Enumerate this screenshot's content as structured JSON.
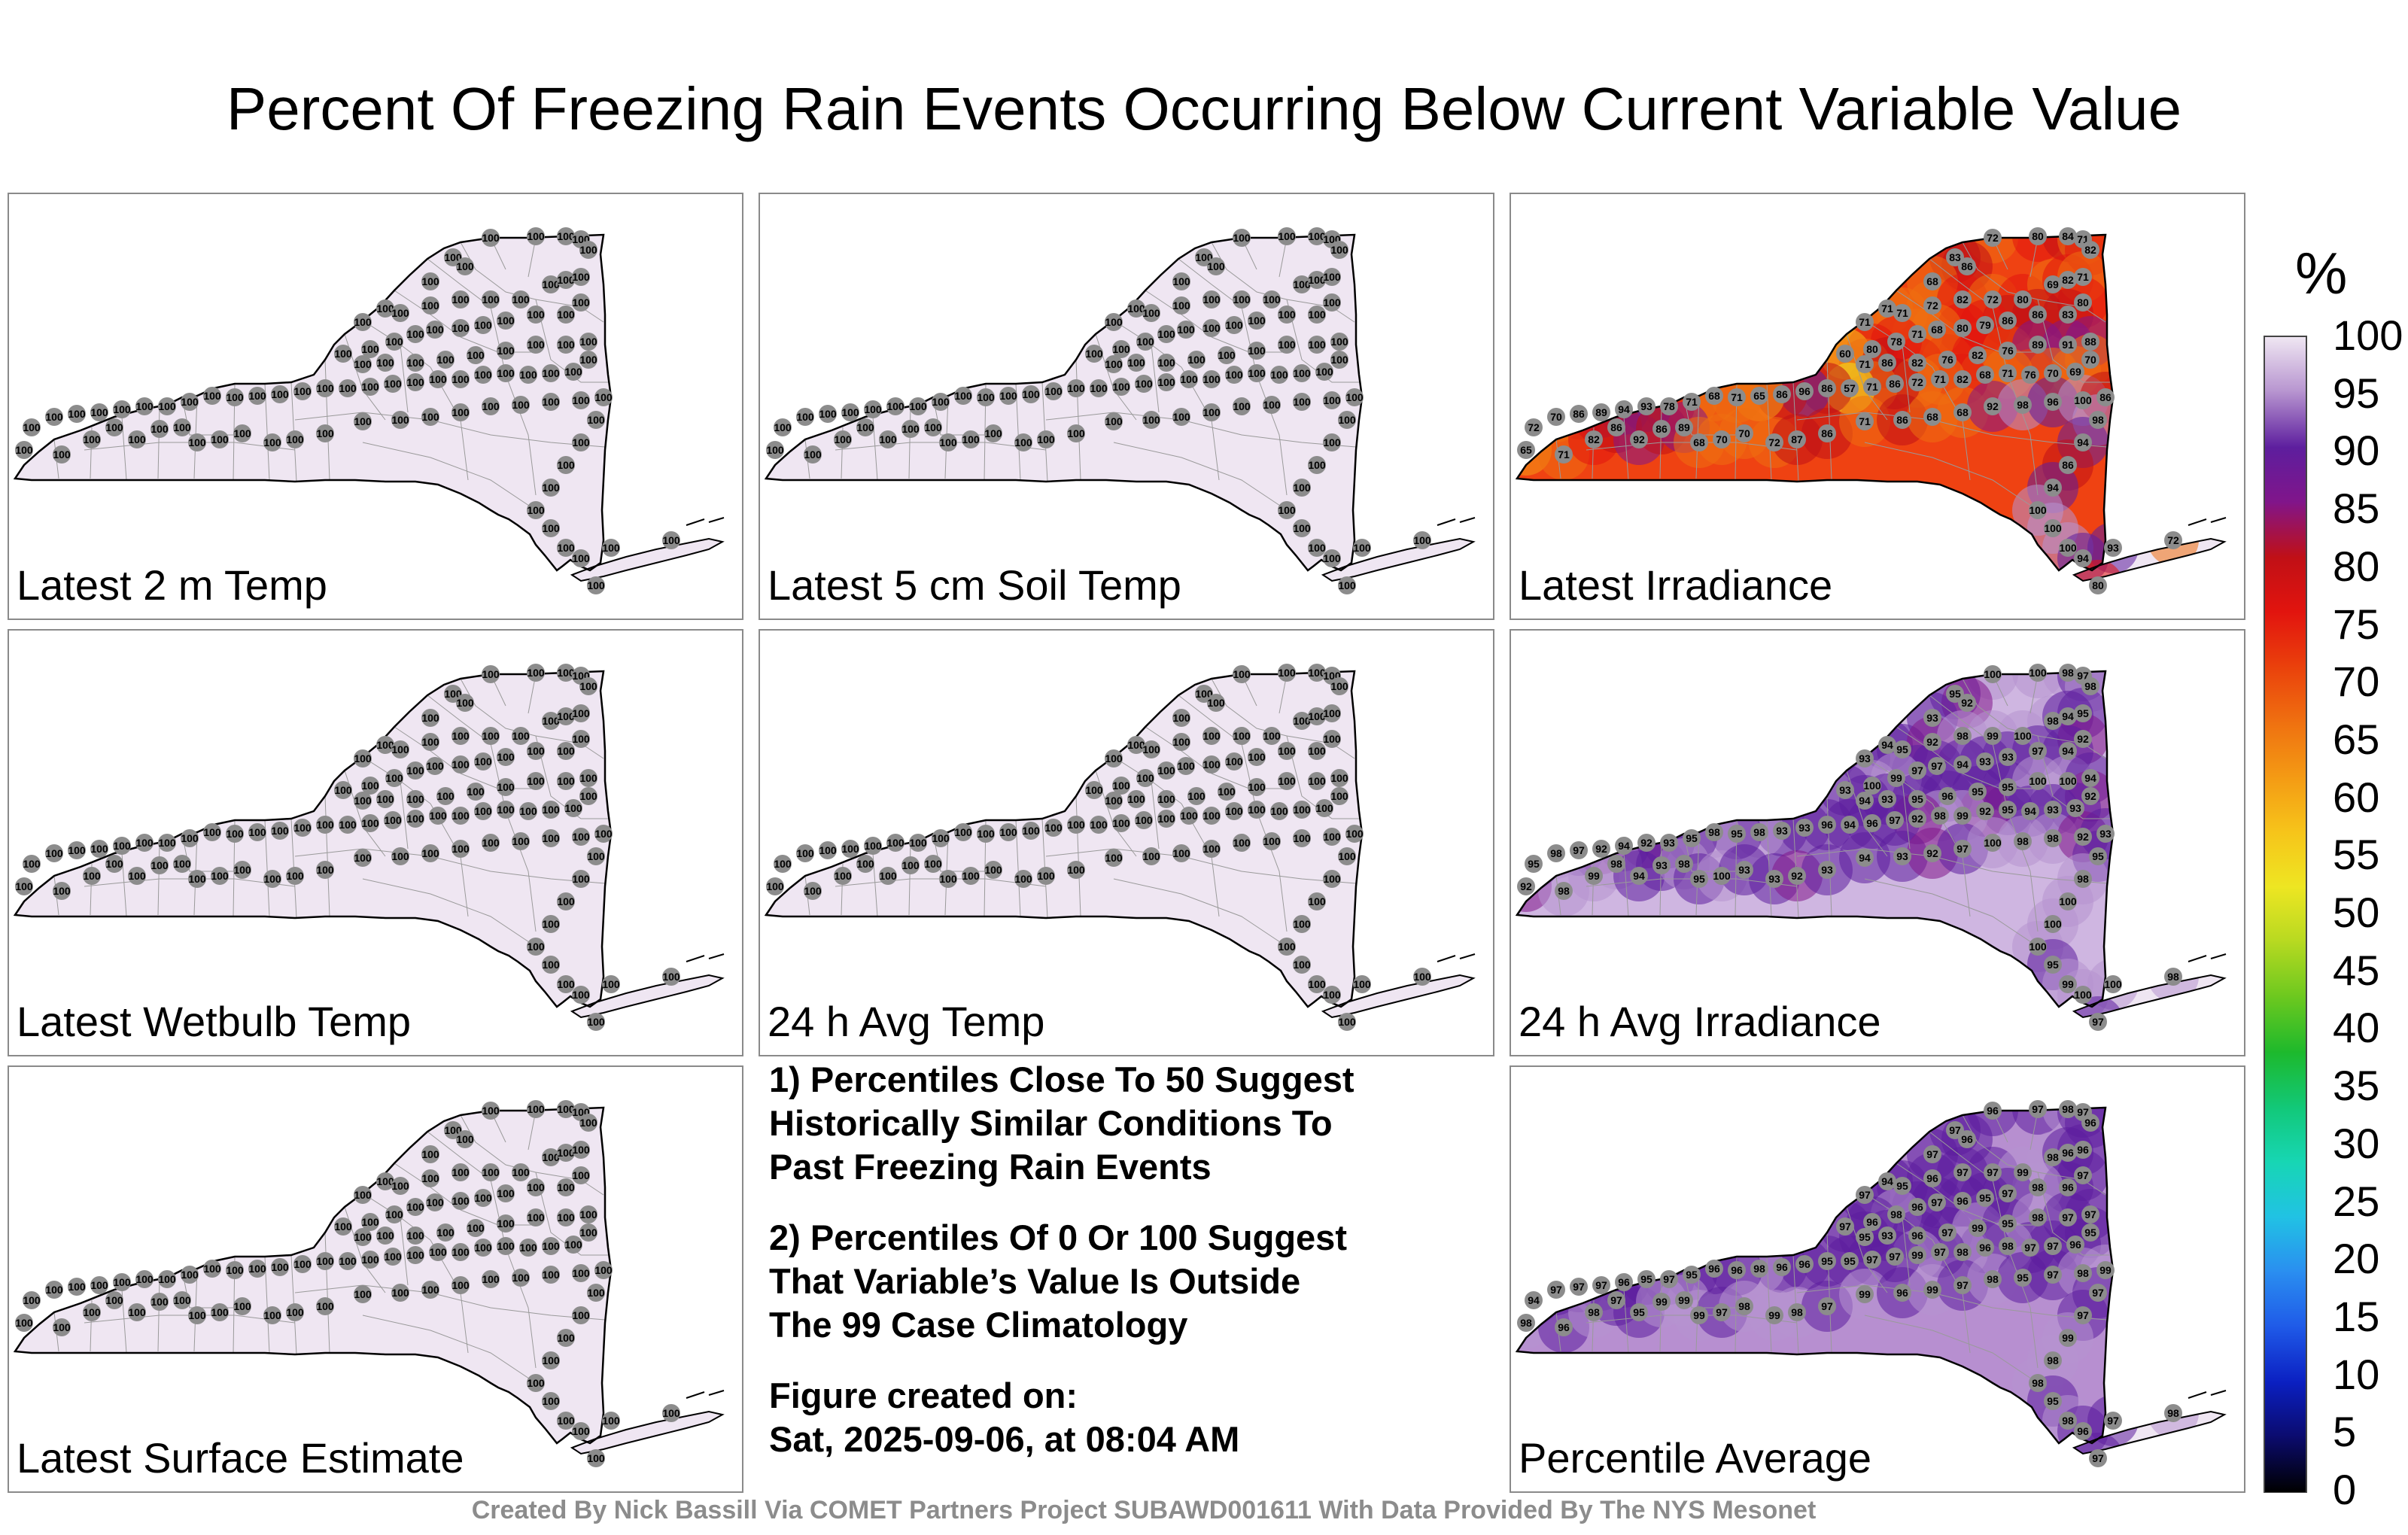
{
  "title": "Percent Of Freezing Rain Events Occurring Below Current Variable Value",
  "panels": [
    {
      "id": "p1",
      "label": "Latest 2 m Temp",
      "mode": "uniform",
      "value": 100
    },
    {
      "id": "p2",
      "label": "Latest 5 cm Soil Temp",
      "mode": "uniform",
      "value": 100
    },
    {
      "id": "p3",
      "label": "Latest Irradiance",
      "mode": "irradiance",
      "values": [
        72,
        80,
        84,
        71,
        82,
        83,
        86,
        68,
        71,
        71,
        71,
        72,
        82,
        72,
        80,
        69,
        82,
        71,
        80,
        83,
        86,
        86,
        79,
        80,
        68,
        71,
        78,
        80,
        60,
        71,
        86,
        82,
        76,
        82,
        76,
        89,
        91,
        88,
        70,
        69,
        70,
        76,
        71,
        68,
        82,
        71,
        72,
        86,
        71,
        57,
        86,
        96,
        86,
        65,
        71,
        68,
        71,
        78,
        93,
        94,
        89,
        86,
        70,
        72,
        65,
        71,
        82,
        86,
        92,
        86,
        89,
        68,
        70,
        70,
        72,
        87,
        86,
        71,
        86,
        68,
        68,
        92,
        98,
        96,
        100,
        86,
        98,
        94,
        86,
        94,
        100,
        100,
        100,
        94,
        93
      ]
    },
    {
      "id": "p4",
      "label": "Latest Wetbulb Temp",
      "mode": "uniform",
      "value": 100
    },
    {
      "id": "p5",
      "label": "24 h Avg Temp",
      "mode": "uniform",
      "value": 100
    },
    {
      "id": "p6",
      "label": "24 h Avg Irradiance",
      "mode": "avgirr",
      "values": [
        100,
        100,
        98,
        97,
        98,
        95,
        92,
        93,
        94,
        93,
        95,
        92,
        98,
        99,
        100,
        98,
        94,
        95,
        92,
        94,
        97,
        93,
        93,
        94,
        97,
        97,
        99,
        100,
        93,
        94,
        93,
        95,
        96,
        95,
        95,
        100,
        100,
        94,
        92,
        93,
        93,
        94,
        95,
        92,
        99,
        98,
        92,
        97,
        96,
        94,
        96,
        93,
        93,
        98,
        95,
        98,
        95,
        93,
        92,
        94,
        92,
        97,
        98,
        95,
        92,
        98,
        99,
        98,
        94,
        93,
        98,
        95,
        100,
        93,
        93,
        92,
        93,
        94,
        93,
        92,
        97,
        100,
        98,
        98,
        92,
        93,
        95,
        98,
        100,
        100,
        100,
        95,
        99
      ]
    },
    {
      "id": "p8",
      "label": "Percentile Average",
      "mode": "pctavg",
      "values": [
        96,
        97,
        98,
        97,
        96,
        97,
        96,
        97,
        94,
        97,
        95,
        96,
        97,
        97,
        99,
        98,
        96,
        96,
        97,
        96,
        98,
        97,
        95,
        96,
        97,
        96,
        98,
        96,
        97,
        95,
        93,
        96,
        97,
        99,
        95,
        98,
        97,
        97,
        95,
        96,
        97,
        97,
        98,
        96,
        98,
        97,
        99,
        97,
        97,
        95,
        95,
        96,
        96,
        98,
        96,
        96,
        95,
        97,
        95,
        96,
        97,
        97,
        97,
        94,
        98,
        96,
        98,
        97,
        95,
        99,
        99,
        99,
        97,
        98,
        99,
        98,
        97,
        99,
        96,
        99,
        97,
        98,
        95,
        97,
        98,
        99,
        97,
        97,
        99,
        98,
        98,
        95,
        98
      ]
    },
    {
      "id": "p7",
      "label": "Latest Surface Estimate",
      "mode": "uniform",
      "value": 100
    }
  ],
  "notes": [
    [
      "1) Percentiles Close To 50 Suggest",
      "Historically Similar Conditions To",
      "Past Freezing Rain Events"
    ],
    [
      "2) Percentiles Of 0 Or 100 Suggest",
      "That Variable’s Value Is Outside",
      "The 99 Case Climatology"
    ],
    [
      "Figure created on:",
      "Sat, 2025-09-06, at 08:04 AM"
    ]
  ],
  "credits": "Created By Nick Bassill Via COMET Partners Project SUBAWD001611 With Data Provided By The NYS Mesonet",
  "colorbar": {
    "unit": "%",
    "ticks": [
      "0",
      "5",
      "10",
      "15",
      "20",
      "25",
      "30",
      "35",
      "40",
      "45",
      "50",
      "55",
      "60",
      "65",
      "70",
      "75",
      "80",
      "85",
      "90",
      "95",
      "100"
    ],
    "colors": [
      "#000000",
      "#0b0b6e",
      "#0b20c2",
      "#1f5ae8",
      "#2a8ef0",
      "#21c2e4",
      "#17d6b4",
      "#12c878",
      "#1db92c",
      "#6cc81f",
      "#b6d921",
      "#eee622",
      "#f6c41a",
      "#f49a14",
      "#ef7010",
      "#ea410c",
      "#e2140e",
      "#c01016",
      "#81158a",
      "#5d1e9e",
      "#b693cf",
      "#efe6f2"
    ]
  },
  "colors": {
    "panel_border": "#8a8a8a",
    "marker": "#8c8c8c",
    "credits_text": "#8c8c8c"
  }
}
